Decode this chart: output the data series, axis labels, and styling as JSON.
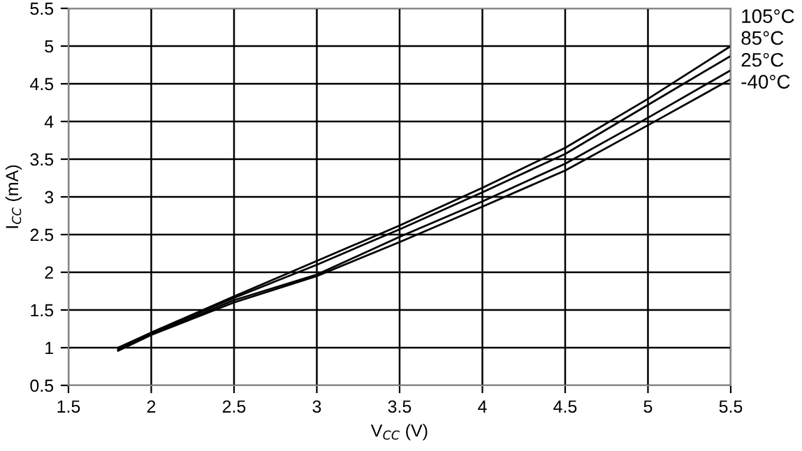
{
  "chart_data": {
    "type": "line",
    "xlabel": "V$_{CC}$ (V)",
    "ylabel": "I$_{CC}$ (mA)",
    "x": [
      1.8,
      2.0,
      2.5,
      3.0,
      3.5,
      4.0,
      4.5,
      5.0,
      5.5
    ],
    "series": [
      {
        "name": "105°C",
        "color": "#000000",
        "values": [
          1.0,
          1.2,
          1.68,
          2.15,
          2.62,
          3.12,
          3.65,
          4.3,
          5.0
        ]
      },
      {
        "name": "85°C",
        "color": "#000000",
        "values": [
          0.99,
          1.2,
          1.66,
          2.1,
          2.57,
          3.06,
          3.57,
          4.22,
          4.87
        ]
      },
      {
        "name": "25°C",
        "color": "#000000",
        "values": [
          0.97,
          1.18,
          1.63,
          1.97,
          2.47,
          2.94,
          3.44,
          4.05,
          4.68
        ]
      },
      {
        "name": "-40°C",
        "color": "#000000",
        "values": [
          0.96,
          1.17,
          1.6,
          1.95,
          2.4,
          2.87,
          3.35,
          3.95,
          4.56
        ]
      }
    ],
    "xlim": [
      1.5,
      5.5
    ],
    "xticks": [
      1.5,
      2,
      2.5,
      3,
      3.5,
      4,
      4.5,
      5,
      5.5
    ],
    "ylim": [
      0.5,
      5.5
    ],
    "yticks": [
      0.5,
      1,
      1.5,
      2,
      2.5,
      3,
      3.5,
      4,
      4.5,
      5,
      5.5
    ],
    "grid": true,
    "marker": "none",
    "line_style": "solid"
  }
}
